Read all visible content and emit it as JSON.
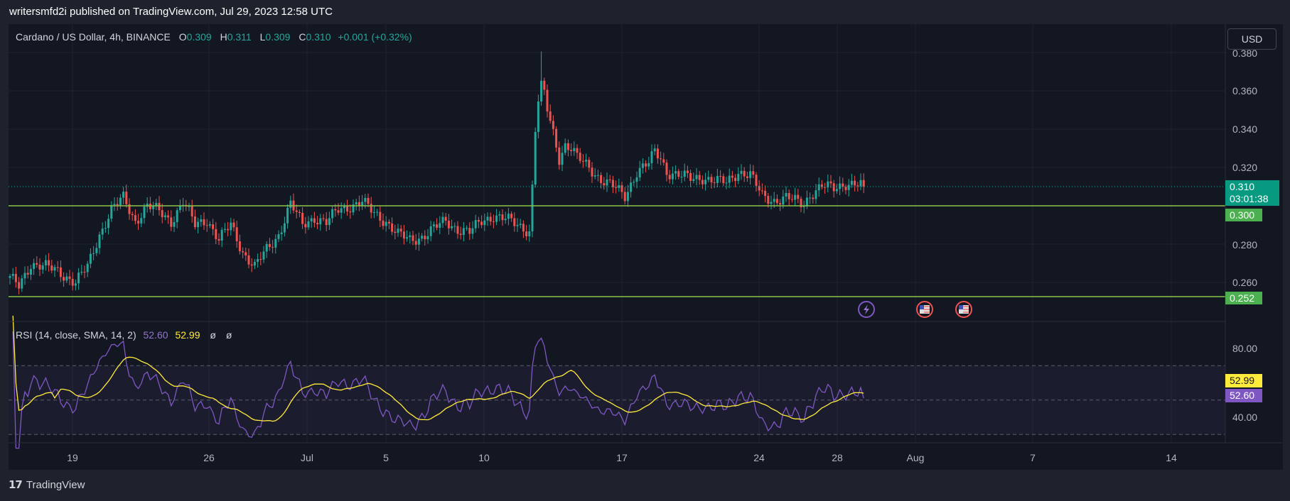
{
  "header": {
    "published_text": "writersmfd2i published on TradingView.com, Jul 29, 2023 12:58 UTC"
  },
  "legend": {
    "symbol": "Cardano / US Dollar, 4h, BINANCE",
    "open_label": "O",
    "open": "0.309",
    "high_label": "H",
    "high": "0.311",
    "low_label": "L",
    "low": "0.309",
    "close_label": "C",
    "close": "0.310",
    "change": "+0.001 (+0.32%)"
  },
  "currency_button": "USD",
  "price_tags": {
    "last_price": "0.310",
    "countdown": "03:01:38",
    "support_upper": "0.300",
    "support_lower": "0.252"
  },
  "rsi_legend": {
    "title": "RSI (14, close, SMA, 14, 2)",
    "rsi_value": "52.60",
    "sma_value": "52.99",
    "null1": "ø",
    "null2": "ø"
  },
  "rsi_tags": {
    "sma": "52.99",
    "rsi": "52.60"
  },
  "footer": {
    "brand": "TradingView"
  },
  "colors": {
    "up": "#26a69a",
    "down": "#ef5350",
    "support_line": "#8bc34a",
    "rsi_line": "#7e57c2",
    "sma_line": "#ffeb3b",
    "background": "#131722"
  },
  "chart_data": [
    {
      "type": "candlestick",
      "title": "Cardano / US Dollar, 4h, BINANCE",
      "x_ticks": [
        "19",
        "26",
        "Jul",
        "5",
        "10",
        "17",
        "24",
        "28",
        "Aug",
        "7",
        "14"
      ],
      "y_ticks": [
        "0.380",
        "0.360",
        "0.340",
        "0.320",
        "0.280",
        "0.260"
      ],
      "ylim": [
        0.245,
        0.38
      ],
      "horizontal_lines": [
        {
          "value": 0.3,
          "label": "0.300"
        },
        {
          "value": 0.252,
          "label": "0.252"
        }
      ],
      "last_price": 0.31,
      "anchors": [
        [
          0,
          0.262
        ],
        [
          3,
          0.258
        ],
        [
          7,
          0.27
        ],
        [
          12,
          0.268
        ],
        [
          16,
          0.266
        ],
        [
          20,
          0.262
        ],
        [
          22,
          0.26
        ],
        [
          26,
          0.268
        ],
        [
          30,
          0.285
        ],
        [
          34,
          0.298
        ],
        [
          38,
          0.304
        ],
        [
          42,
          0.292
        ],
        [
          46,
          0.3
        ],
        [
          50,
          0.297
        ],
        [
          54,
          0.292
        ],
        [
          58,
          0.302
        ],
        [
          62,
          0.29
        ],
        [
          66,
          0.293
        ],
        [
          70,
          0.282
        ],
        [
          74,
          0.29
        ],
        [
          78,
          0.276
        ],
        [
          82,
          0.268
        ],
        [
          86,
          0.277
        ],
        [
          90,
          0.285
        ],
        [
          94,
          0.301
        ],
        [
          98,
          0.29
        ],
        [
          102,
          0.294
        ],
        [
          106,
          0.291
        ],
        [
          110,
          0.298
        ],
        [
          114,
          0.3
        ],
        [
          118,
          0.302
        ],
        [
          122,
          0.296
        ],
        [
          126,
          0.292
        ],
        [
          130,
          0.285
        ],
        [
          134,
          0.282
        ],
        [
          138,
          0.284
        ],
        [
          142,
          0.288
        ],
        [
          146,
          0.292
        ],
        [
          150,
          0.288
        ],
        [
          154,
          0.286
        ],
        [
          158,
          0.292
        ],
        [
          162,
          0.295
        ],
        [
          166,
          0.293
        ],
        [
          170,
          0.29
        ],
        [
          174,
          0.287
        ],
        [
          175,
          0.31
        ],
        [
          176,
          0.34
        ],
        [
          177,
          0.355
        ],
        [
          178,
          0.362
        ],
        [
          179,
          0.358
        ],
        [
          180,
          0.35
        ],
        [
          182,
          0.338
        ],
        [
          184,
          0.325
        ],
        [
          186,
          0.332
        ],
        [
          188,
          0.33
        ],
        [
          190,
          0.325
        ],
        [
          194,
          0.32
        ],
        [
          198,
          0.314
        ],
        [
          202,
          0.31
        ],
        [
          206,
          0.305
        ],
        [
          210,
          0.318
        ],
        [
          214,
          0.322
        ],
        [
          216,
          0.328
        ],
        [
          218,
          0.325
        ],
        [
          220,
          0.318
        ],
        [
          224,
          0.316
        ],
        [
          228,
          0.314
        ],
        [
          232,
          0.315
        ],
        [
          236,
          0.313
        ],
        [
          240,
          0.312
        ],
        [
          244,
          0.318
        ],
        [
          248,
          0.316
        ],
        [
          252,
          0.305
        ],
        [
          256,
          0.303
        ],
        [
          260,
          0.304
        ],
        [
          264,
          0.302
        ],
        [
          266,
          0.301
        ],
        [
          268,
          0.306
        ],
        [
          272,
          0.31
        ],
        [
          276,
          0.309
        ],
        [
          280,
          0.312
        ],
        [
          284,
          0.311
        ],
        [
          286,
          0.31
        ]
      ]
    },
    {
      "type": "line",
      "title": "RSI (14, close, SMA, 14, 2)",
      "y_ticks": [
        "80.00",
        "40.00"
      ],
      "ylim": [
        20,
        92
      ],
      "bands": [
        70,
        50,
        30
      ],
      "series": [
        {
          "name": "RSI",
          "last": 52.6
        },
        {
          "name": "SMA",
          "last": 52.99
        }
      ]
    }
  ]
}
